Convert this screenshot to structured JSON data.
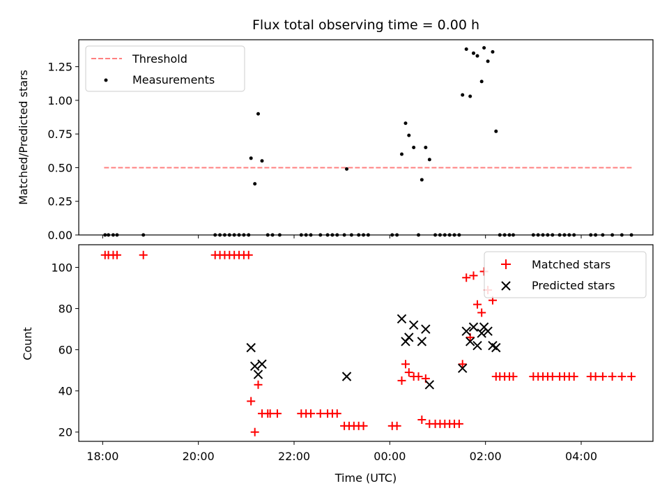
{
  "chart_data": [
    {
      "type": "scatter",
      "title": "Flux total observing time = 0.00 h",
      "xlabel": "",
      "ylabel": "Matched/Predicted stars",
      "xlim": [
        17.5,
        29.5
      ],
      "ylim": [
        0,
        1.45
      ],
      "yticks": [
        0,
        0.25,
        0.5,
        0.75,
        1.0,
        1.25
      ],
      "ytick_labels": [
        "0.00",
        "0.25",
        "0.50",
        "0.75",
        "1.00",
        "1.25"
      ],
      "legend_position": "upper left",
      "threshold": {
        "name": "Threshold",
        "y": 0.5,
        "x_start": 18.03,
        "x_end": 29.07,
        "color": "#ff7f7f",
        "style": "dashed"
      },
      "series": [
        {
          "name": "Measurements",
          "color": "#000000",
          "marker": "dot",
          "points": [
            [
              18.05,
              0
            ],
            [
              18.12,
              0
            ],
            [
              18.22,
              0
            ],
            [
              18.3,
              0
            ],
            [
              18.85,
              0
            ],
            [
              20.35,
              0
            ],
            [
              20.45,
              0
            ],
            [
              20.55,
              0
            ],
            [
              20.65,
              0
            ],
            [
              20.75,
              0
            ],
            [
              20.85,
              0
            ],
            [
              20.95,
              0
            ],
            [
              21.05,
              0
            ],
            [
              21.1,
              0.57
            ],
            [
              21.18,
              0.38
            ],
            [
              21.25,
              0.9
            ],
            [
              21.33,
              0.55
            ],
            [
              21.45,
              0
            ],
            [
              21.55,
              0
            ],
            [
              21.7,
              0
            ],
            [
              22.15,
              0
            ],
            [
              22.25,
              0
            ],
            [
              22.35,
              0
            ],
            [
              22.55,
              0
            ],
            [
              22.7,
              0
            ],
            [
              22.8,
              0
            ],
            [
              22.9,
              0
            ],
            [
              23.05,
              0
            ],
            [
              23.1,
              0.49
            ],
            [
              23.2,
              0
            ],
            [
              23.35,
              0
            ],
            [
              23.45,
              0
            ],
            [
              23.55,
              0
            ],
            [
              24.05,
              0
            ],
            [
              24.15,
              0
            ],
            [
              24.25,
              0.6
            ],
            [
              24.33,
              0.83
            ],
            [
              24.4,
              0.74
            ],
            [
              24.5,
              0.65
            ],
            [
              24.6,
              0
            ],
            [
              24.67,
              0.41
            ],
            [
              24.75,
              0.65
            ],
            [
              24.83,
              0.56
            ],
            [
              24.95,
              0
            ],
            [
              25.05,
              0
            ],
            [
              25.15,
              0
            ],
            [
              25.25,
              0
            ],
            [
              25.35,
              0
            ],
            [
              25.45,
              0
            ],
            [
              25.52,
              1.04
            ],
            [
              25.6,
              1.38
            ],
            [
              25.68,
              1.03
            ],
            [
              25.75,
              1.35
            ],
            [
              25.83,
              1.33
            ],
            [
              25.92,
              1.14
            ],
            [
              25.97,
              1.39
            ],
            [
              26.05,
              1.29
            ],
            [
              26.15,
              1.36
            ],
            [
              26.22,
              0.77
            ],
            [
              26.3,
              0
            ],
            [
              26.4,
              0
            ],
            [
              26.5,
              0
            ],
            [
              26.58,
              0
            ],
            [
              27.0,
              0
            ],
            [
              27.1,
              0
            ],
            [
              27.2,
              0
            ],
            [
              27.3,
              0
            ],
            [
              27.4,
              0
            ],
            [
              27.55,
              0
            ],
            [
              27.65,
              0
            ],
            [
              27.75,
              0
            ],
            [
              27.85,
              0
            ],
            [
              28.2,
              0
            ],
            [
              28.3,
              0
            ],
            [
              28.45,
              0
            ],
            [
              28.65,
              0
            ],
            [
              28.85,
              0
            ],
            [
              29.05,
              0
            ]
          ]
        }
      ]
    },
    {
      "type": "scatter",
      "title": "",
      "xlabel": "Time (UTC)",
      "ylabel": "Count",
      "xlim": [
        17.5,
        29.5
      ],
      "ylim": [
        15.5,
        111
      ],
      "yticks": [
        20,
        40,
        60,
        80,
        100
      ],
      "ytick_labels": [
        "20",
        "40",
        "60",
        "80",
        "100"
      ],
      "xticks": [
        18,
        20,
        22,
        24,
        26,
        28
      ],
      "xtick_labels": [
        "18:00",
        "20:00",
        "22:00",
        "00:00",
        "02:00",
        "04:00"
      ],
      "legend_position": "upper right",
      "series": [
        {
          "name": "Matched stars",
          "color": "#ff0000",
          "marker": "plus",
          "points": [
            [
              18.05,
              106
            ],
            [
              18.12,
              106
            ],
            [
              18.22,
              106
            ],
            [
              18.3,
              106
            ],
            [
              18.85,
              106
            ],
            [
              20.35,
              106
            ],
            [
              20.45,
              106
            ],
            [
              20.55,
              106
            ],
            [
              20.65,
              106
            ],
            [
              20.75,
              106
            ],
            [
              20.85,
              106
            ],
            [
              20.95,
              106
            ],
            [
              21.05,
              106
            ],
            [
              21.1,
              35
            ],
            [
              21.18,
              20
            ],
            [
              21.25,
              43
            ],
            [
              21.33,
              29
            ],
            [
              21.45,
              29
            ],
            [
              21.5,
              29
            ],
            [
              21.65,
              29
            ],
            [
              22.15,
              29
            ],
            [
              22.25,
              29
            ],
            [
              22.35,
              29
            ],
            [
              22.55,
              29
            ],
            [
              22.7,
              29
            ],
            [
              22.8,
              29
            ],
            [
              22.9,
              29
            ],
            [
              23.05,
              23
            ],
            [
              23.15,
              23
            ],
            [
              23.25,
              23
            ],
            [
              23.35,
              23
            ],
            [
              23.45,
              23
            ],
            [
              24.05,
              23
            ],
            [
              24.15,
              23
            ],
            [
              24.25,
              45
            ],
            [
              24.33,
              53
            ],
            [
              24.4,
              49
            ],
            [
              24.5,
              47
            ],
            [
              24.6,
              47
            ],
            [
              24.67,
              26
            ],
            [
              24.75,
              46
            ],
            [
              24.83,
              24
            ],
            [
              24.95,
              24
            ],
            [
              25.05,
              24
            ],
            [
              25.15,
              24
            ],
            [
              25.25,
              24
            ],
            [
              25.35,
              24
            ],
            [
              25.45,
              24
            ],
            [
              25.52,
              53
            ],
            [
              25.6,
              95
            ],
            [
              25.68,
              66
            ],
            [
              25.75,
              96
            ],
            [
              25.83,
              82
            ],
            [
              25.92,
              78
            ],
            [
              25.97,
              98
            ],
            [
              26.05,
              89
            ],
            [
              26.15,
              84
            ],
            [
              26.22,
              47
            ],
            [
              26.3,
              47
            ],
            [
              26.4,
              47
            ],
            [
              26.5,
              47
            ],
            [
              26.58,
              47
            ],
            [
              27.0,
              47
            ],
            [
              27.1,
              47
            ],
            [
              27.2,
              47
            ],
            [
              27.3,
              47
            ],
            [
              27.4,
              47
            ],
            [
              27.55,
              47
            ],
            [
              27.65,
              47
            ],
            [
              27.75,
              47
            ],
            [
              27.85,
              47
            ],
            [
              28.2,
              47
            ],
            [
              28.3,
              47
            ],
            [
              28.45,
              47
            ],
            [
              28.65,
              47
            ],
            [
              28.85,
              47
            ],
            [
              29.05,
              47
            ]
          ]
        },
        {
          "name": "Predicted stars",
          "color": "#000000",
          "marker": "x",
          "points": [
            [
              21.1,
              61
            ],
            [
              21.18,
              52
            ],
            [
              21.25,
              48
            ],
            [
              21.33,
              53
            ],
            [
              23.1,
              47
            ],
            [
              24.25,
              75
            ],
            [
              24.33,
              64
            ],
            [
              24.4,
              66
            ],
            [
              24.5,
              72
            ],
            [
              24.67,
              64
            ],
            [
              24.75,
              70
            ],
            [
              24.83,
              43
            ],
            [
              25.52,
              51
            ],
            [
              25.6,
              69
            ],
            [
              25.68,
              64
            ],
            [
              25.75,
              71
            ],
            [
              25.83,
              62
            ],
            [
              25.92,
              68
            ],
            [
              25.97,
              71
            ],
            [
              26.05,
              69
            ],
            [
              26.15,
              62
            ],
            [
              26.22,
              61
            ]
          ]
        }
      ]
    }
  ]
}
